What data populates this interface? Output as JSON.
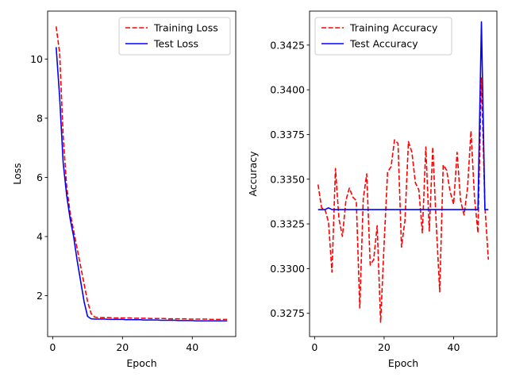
{
  "chart_data": [
    {
      "type": "line",
      "xlabel": "Epoch",
      "ylabel": "Loss",
      "xlim": [
        -1.45,
        52.45
      ],
      "ylim": [
        0.62,
        11.62
      ],
      "xticks": [
        0,
        20,
        40
      ],
      "yticks": [
        2,
        4,
        6,
        8,
        10
      ],
      "ytick_decimals": 0,
      "legend_position": "upper-right",
      "grid": false,
      "series": [
        {
          "name": "Training Loss",
          "color": "#ff0000",
          "style": "dashed",
          "x": [
            1,
            2,
            3,
            4,
            5,
            6,
            7,
            8,
            9,
            10,
            11,
            12,
            13,
            14,
            15,
            16,
            17,
            18,
            19,
            20,
            21,
            22,
            23,
            24,
            25,
            26,
            27,
            28,
            29,
            30,
            31,
            32,
            33,
            34,
            35,
            36,
            37,
            38,
            39,
            40,
            41,
            42,
            43,
            44,
            45,
            46,
            47,
            48,
            49,
            50
          ],
          "y": [
            11.1,
            10.2,
            7.4,
            5.7,
            4.8,
            4.2,
            3.6,
            3.0,
            2.4,
            1.8,
            1.4,
            1.28,
            1.26,
            1.26,
            1.26,
            1.26,
            1.25,
            1.25,
            1.25,
            1.25,
            1.25,
            1.25,
            1.24,
            1.24,
            1.24,
            1.24,
            1.24,
            1.23,
            1.23,
            1.23,
            1.23,
            1.23,
            1.22,
            1.22,
            1.22,
            1.22,
            1.22,
            1.22,
            1.21,
            1.21,
            1.21,
            1.21,
            1.21,
            1.21,
            1.2,
            1.2,
            1.2,
            1.2,
            1.2,
            1.2
          ]
        },
        {
          "name": "Test Loss",
          "color": "#0000ff",
          "style": "solid",
          "x": [
            1,
            2,
            3,
            4,
            5,
            6,
            7,
            8,
            9,
            10,
            11,
            12,
            13,
            14,
            15,
            16,
            17,
            18,
            19,
            20,
            21,
            22,
            23,
            24,
            25,
            26,
            27,
            28,
            29,
            30,
            31,
            32,
            33,
            34,
            35,
            36,
            37,
            38,
            39,
            40,
            41,
            42,
            43,
            44,
            45,
            46,
            47,
            48,
            49,
            50
          ],
          "y": [
            10.4,
            8.7,
            6.5,
            5.4,
            4.6,
            4.0,
            3.2,
            2.5,
            1.8,
            1.3,
            1.22,
            1.21,
            1.21,
            1.21,
            1.21,
            1.2,
            1.2,
            1.2,
            1.2,
            1.2,
            1.19,
            1.19,
            1.19,
            1.19,
            1.19,
            1.18,
            1.18,
            1.18,
            1.18,
            1.18,
            1.17,
            1.17,
            1.17,
            1.17,
            1.17,
            1.16,
            1.16,
            1.16,
            1.16,
            1.16,
            1.15,
            1.15,
            1.15,
            1.15,
            1.15,
            1.15,
            1.15,
            1.15,
            1.15,
            1.15
          ]
        }
      ]
    },
    {
      "type": "line",
      "xlabel": "Epoch",
      "ylabel": "Accuracy",
      "xlim": [
        -1.45,
        52.45
      ],
      "ylim": [
        0.3262,
        0.3444
      ],
      "xticks": [
        0,
        20,
        40
      ],
      "yticks": [
        0.3275,
        0.33,
        0.3325,
        0.335,
        0.3375,
        0.34,
        0.3425
      ],
      "ytick_decimals": 4,
      "legend_position": "upper-left",
      "grid": false,
      "series": [
        {
          "name": "Training Accuracy",
          "color": "#ff0000",
          "style": "dashed",
          "x": [
            1,
            2,
            3,
            4,
            5,
            6,
            7,
            8,
            9,
            10,
            11,
            12,
            13,
            14,
            15,
            16,
            17,
            18,
            19,
            20,
            21,
            22,
            23,
            24,
            25,
            26,
            27,
            28,
            29,
            30,
            31,
            32,
            33,
            34,
            35,
            36,
            37,
            38,
            39,
            40,
            41,
            42,
            43,
            44,
            45,
            46,
            47,
            48,
            49,
            50
          ],
          "y": [
            0.3347,
            0.3334,
            0.3333,
            0.3326,
            0.3298,
            0.3356,
            0.3328,
            0.3318,
            0.3338,
            0.3345,
            0.334,
            0.3338,
            0.3278,
            0.3339,
            0.3353,
            0.3302,
            0.3305,
            0.3324,
            0.327,
            0.3314,
            0.3354,
            0.3357,
            0.3372,
            0.337,
            0.3312,
            0.3327,
            0.3371,
            0.3365,
            0.3348,
            0.3344,
            0.332,
            0.3368,
            0.3321,
            0.3368,
            0.3325,
            0.3287,
            0.3358,
            0.3355,
            0.3343,
            0.3336,
            0.3365,
            0.3338,
            0.333,
            0.3345,
            0.3377,
            0.334,
            0.332,
            0.3407,
            0.3335,
            0.3305
          ]
        },
        {
          "name": "Test Accuracy",
          "color": "#0000ff",
          "style": "solid",
          "x": [
            1,
            2,
            3,
            4,
            5,
            6,
            7,
            8,
            9,
            10,
            11,
            12,
            13,
            14,
            15,
            16,
            17,
            18,
            19,
            20,
            21,
            22,
            23,
            24,
            25,
            26,
            27,
            28,
            29,
            30,
            31,
            32,
            33,
            34,
            35,
            36,
            37,
            38,
            39,
            40,
            41,
            42,
            43,
            44,
            45,
            46,
            47,
            48,
            49,
            50
          ],
          "y": [
            0.3333,
            0.3333,
            0.3333,
            0.3334,
            0.3333,
            0.3333,
            0.3333,
            0.3333,
            0.3333,
            0.3333,
            0.3333,
            0.3333,
            0.3333,
            0.3333,
            0.3333,
            0.3333,
            0.3333,
            0.3333,
            0.3333,
            0.3333,
            0.3333,
            0.3333,
            0.3333,
            0.3333,
            0.3333,
            0.3333,
            0.3333,
            0.3333,
            0.3333,
            0.3333,
            0.3333,
            0.3333,
            0.3333,
            0.3333,
            0.3333,
            0.3333,
            0.3333,
            0.3333,
            0.3333,
            0.3333,
            0.3333,
            0.3333,
            0.3333,
            0.3333,
            0.3333,
            0.3333,
            0.3333,
            0.3438,
            0.3333,
            0.3333
          ]
        }
      ]
    }
  ]
}
